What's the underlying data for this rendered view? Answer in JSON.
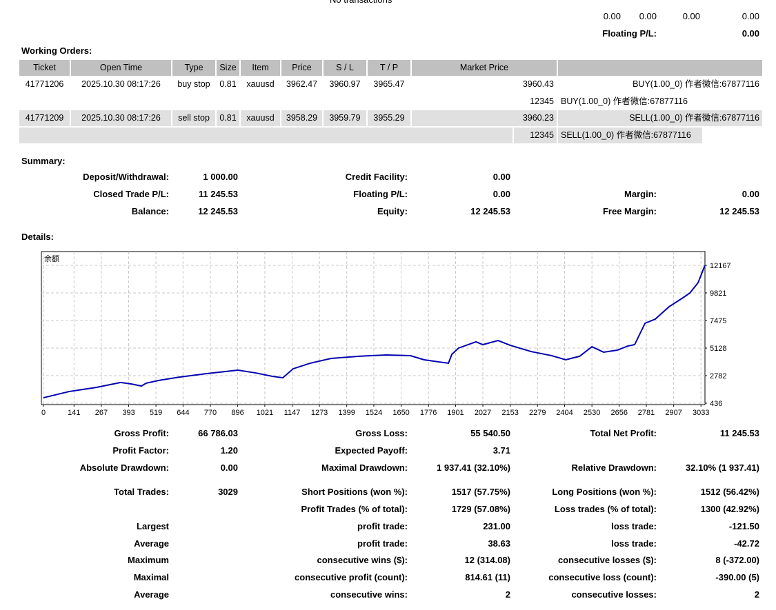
{
  "top": {
    "no_transactions": "No transactions",
    "totals": [
      "0.00",
      "0.00",
      "0.00",
      "0.00"
    ],
    "floating_label": "Floating P/L:",
    "floating_value": "0.00"
  },
  "working_orders": {
    "title": "Working Orders:",
    "headers": [
      "Ticket",
      "Open Time",
      "Type",
      "Size",
      "Item",
      "Price",
      "S / L",
      "T / P",
      "Market Price",
      ""
    ],
    "rows": [
      {
        "ticket": "41771206",
        "open_time": "2025.10.30 08:17:26",
        "type": "buy stop",
        "size": "0.81",
        "item": "xauusd",
        "price": "3962.47",
        "sl": "3960.97",
        "tp": "3965.47",
        "market_price": "3960.43",
        "comment": "BUY(1.00_0) 作者微信:67877116",
        "sub_id": "12345",
        "sub_comment": "BUY(1.00_0) 作者微信:67877116"
      },
      {
        "ticket": "41771209",
        "open_time": "2025.10.30 08:17:26",
        "type": "sell stop",
        "size": "0.81",
        "item": "xauusd",
        "price": "3958.29",
        "sl": "3959.79",
        "tp": "3955.29",
        "market_price": "3960.23",
        "comment": "SELL(1.00_0) 作者微信:67877116",
        "sub_id": "12345",
        "sub_comment": "SELL(1.00_0) 作者微信:67877116"
      }
    ]
  },
  "summary": {
    "title": "Summary:",
    "rows": [
      [
        "Deposit/Withdrawal:",
        "1 000.00",
        "Credit Facility:",
        "0.00",
        "",
        ""
      ],
      [
        "Closed Trade P/L:",
        "11 245.53",
        "Floating P/L:",
        "0.00",
        "Margin:",
        "0.00"
      ],
      [
        "Balance:",
        "12 245.53",
        "Equity:",
        "12 245.53",
        "Free Margin:",
        "12 245.53"
      ]
    ]
  },
  "details": {
    "title": "Details:",
    "rows": [
      [
        "Gross Profit:",
        "66 786.03",
        "Gross Loss:",
        "55 540.50",
        "Total Net Profit:",
        "11 245.53"
      ],
      [
        "Profit Factor:",
        "1.20",
        "Expected Payoff:",
        "3.71",
        "",
        ""
      ],
      [
        "Absolute Drawdown:",
        "0.00",
        "Maximal Drawdown:",
        "1 937.41 (32.10%)",
        "Relative Drawdown:",
        "32.10% (1 937.41)"
      ],
      [
        "Total Trades:",
        "3029",
        "Short Positions (won %):",
        "1517 (57.75%)",
        "Long Positions (won %):",
        "1512 (56.42%)"
      ],
      [
        "",
        "",
        "Profit Trades (% of total):",
        "1729 (57.08%)",
        "Loss trades (% of total):",
        "1300 (42.92%)"
      ],
      [
        "Largest",
        "",
        "profit trade:",
        "231.00",
        "loss trade:",
        "-121.50"
      ],
      [
        "Average",
        "",
        "profit trade:",
        "38.63",
        "loss trade:",
        "-42.72"
      ],
      [
        "Maximum",
        "",
        "consecutive wins ($):",
        "12 (314.08)",
        "consecutive losses ($):",
        "8 (-372.00)"
      ],
      [
        "Maximal",
        "",
        "consecutive profit (count):",
        "814.61 (11)",
        "consecutive loss (count):",
        "-390.00 (5)"
      ],
      [
        "Average",
        "",
        "consecutive wins:",
        "2",
        "consecutive losses:",
        "2"
      ]
    ]
  },
  "chart_data": {
    "type": "line",
    "title": "余额",
    "xlabel": "",
    "ylabel": "",
    "x_ticks": [
      0,
      141,
      267,
      393,
      519,
      644,
      770,
      896,
      1021,
      1147,
      1273,
      1399,
      1524,
      1650,
      1776,
      1901,
      2027,
      2153,
      2279,
      2404,
      2530,
      2656,
      2781,
      2907,
      3033
    ],
    "y_ticks": [
      436,
      2782,
      5128,
      7475,
      9821,
      12167
    ],
    "xlim": [
      0,
      3060
    ],
    "ylim": [
      319,
      12800
    ],
    "grid": true,
    "line_color": "#0000b0",
    "series": [
      {
        "name": "余额",
        "x": [
          0,
          118,
          245,
          356,
          404,
          452,
          474,
          531,
          627,
          754,
          897,
          977,
          1057,
          1104,
          1152,
          1231,
          1327,
          1454,
          1581,
          1693,
          1756,
          1868,
          1884,
          1915,
          1995,
          2027,
          2097,
          2154,
          2250,
          2345,
          2409,
          2473,
          2530,
          2584,
          2647,
          2695,
          2727,
          2775,
          2822,
          2886,
          2950,
          2982,
          3020,
          3051
        ],
        "y": [
          900,
          1430,
          1785,
          2200,
          2080,
          1900,
          2140,
          2370,
          2660,
          2960,
          3250,
          3020,
          2720,
          2600,
          3370,
          3840,
          4250,
          4430,
          4540,
          4480,
          4130,
          3840,
          4600,
          5130,
          5660,
          5420,
          5770,
          5360,
          4830,
          4480,
          4130,
          4430,
          5240,
          4780,
          4950,
          5300,
          5420,
          7240,
          7590,
          8650,
          9410,
          9820,
          10700,
          12167
        ]
      }
    ]
  }
}
